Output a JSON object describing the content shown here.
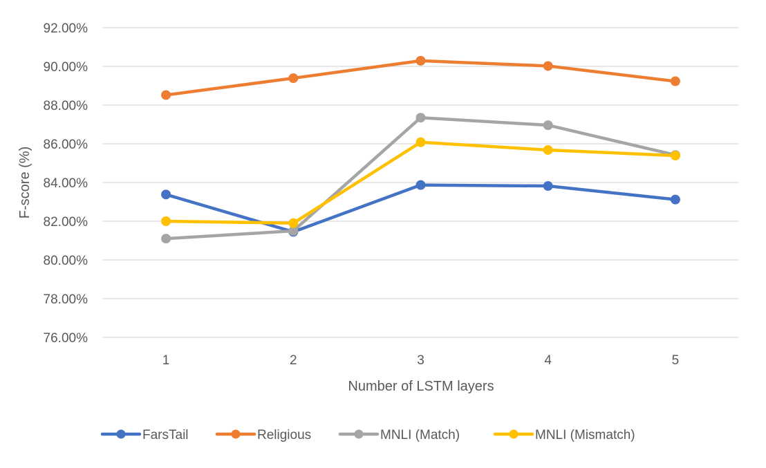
{
  "chart_data": {
    "type": "line",
    "title": "",
    "xlabel": "Number of LSTM layers",
    "ylabel": "F-score (%)",
    "categories": [
      "1",
      "2",
      "3",
      "4",
      "5"
    ],
    "ylim": [
      76,
      92
    ],
    "ytick_step": 2,
    "ytick_labels": [
      "76.00%",
      "78.00%",
      "80.00%",
      "82.00%",
      "84.00%",
      "86.00%",
      "88.00%",
      "90.00%",
      "92.00%"
    ],
    "grid": true,
    "legend_position": "bottom",
    "series": [
      {
        "name": "FarsTail",
        "color": "#4472C4",
        "values": [
          83.38,
          81.45,
          83.87,
          83.82,
          83.12
        ]
      },
      {
        "name": "Religious",
        "color": "#ED7D31",
        "values": [
          88.52,
          89.39,
          90.29,
          90.02,
          89.23
        ]
      },
      {
        "name": "MNLI (Match)",
        "color": "#A5A5A5",
        "values": [
          81.1,
          81.5,
          87.35,
          86.96,
          85.42
        ]
      },
      {
        "name": "MNLI (Mismatch)",
        "color": "#FFC000",
        "values": [
          82.0,
          81.9,
          86.08,
          85.68,
          85.39
        ]
      }
    ]
  }
}
